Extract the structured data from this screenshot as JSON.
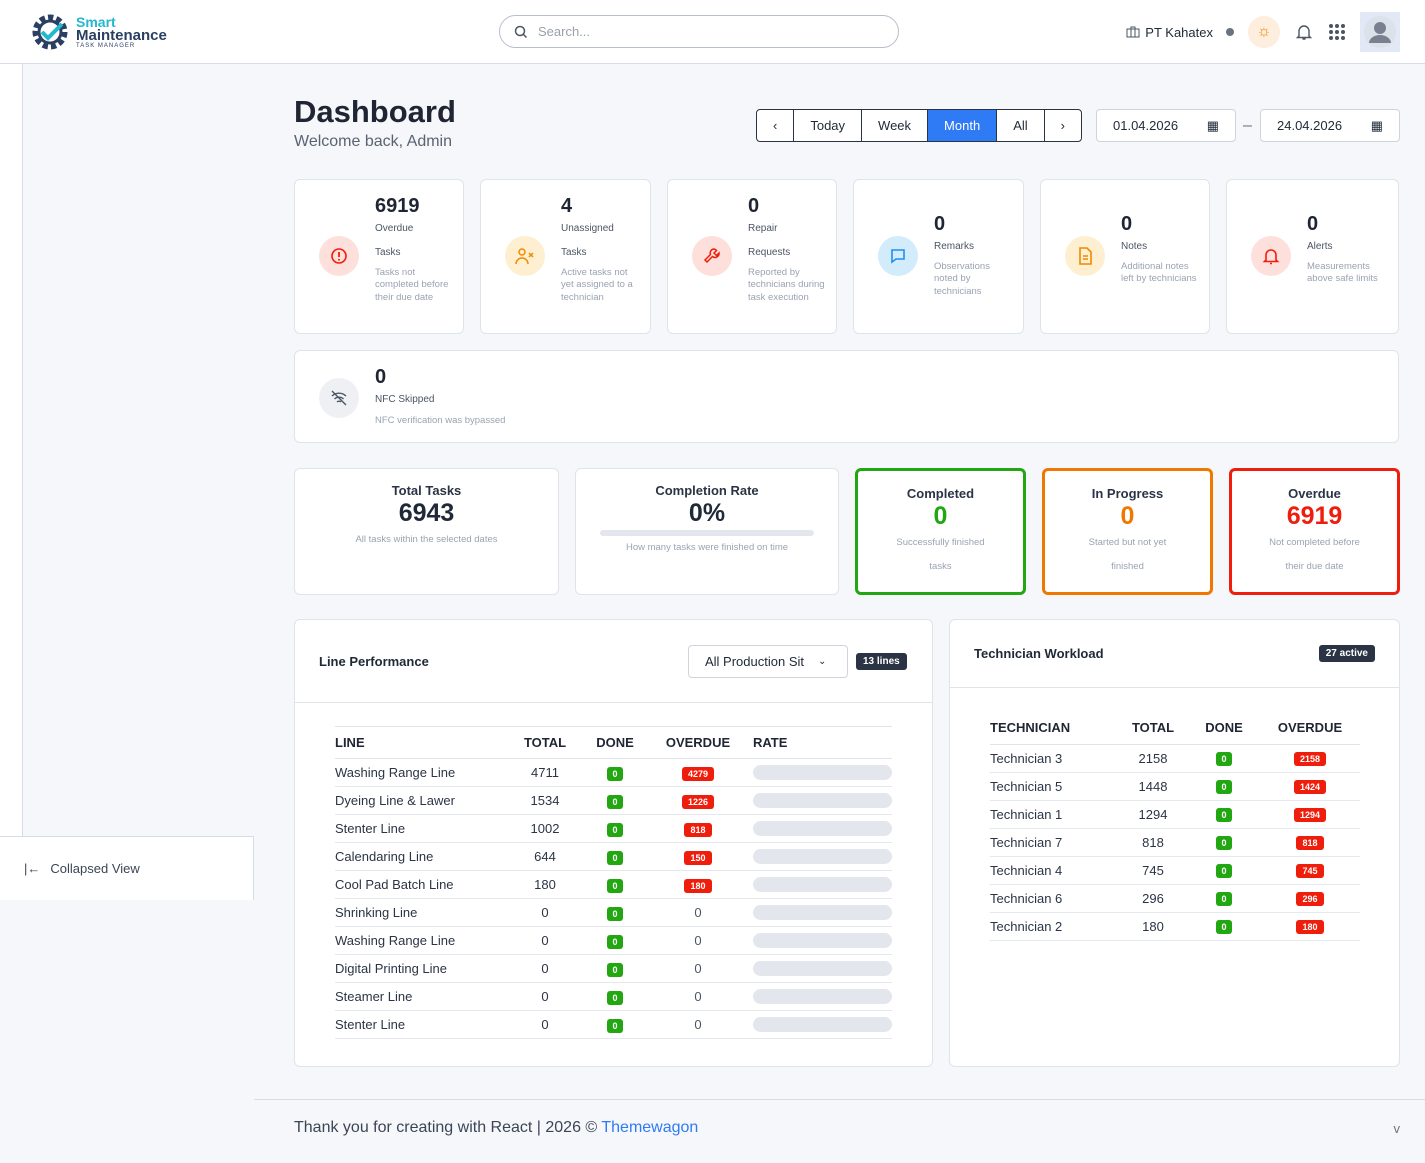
{
  "header": {
    "logo": {
      "line1": "Smart",
      "line2": "Maintenance",
      "line3": "TASK MANAGER"
    },
    "search_placeholder": "Search...",
    "company": "PT Kahatex"
  },
  "sidebar": {
    "collapse_label": "Collapsed View"
  },
  "page": {
    "title": "Dashboard",
    "subtitle": "Welcome back, Admin"
  },
  "range": {
    "prev": "‹",
    "today": "Today",
    "week": "Week",
    "month": "Month",
    "all": "All",
    "next": "›",
    "active": "Month",
    "from": "01.04.2026",
    "sep": "–",
    "to": "24.04.2026"
  },
  "kpis": [
    {
      "value": "6919",
      "label1": "Overdue",
      "label2": "Tasks",
      "desc": "Tasks not completed before their due date",
      "icon": "alert-circle",
      "color": "#ef1d0b",
      "bg": "#fde0dc"
    },
    {
      "value": "4",
      "label1": "Unassigned",
      "label2": "Tasks",
      "desc": "Active tasks not yet assigned to a technician",
      "icon": "user-x",
      "color": "#f08a00",
      "bg": "#fdefcf"
    },
    {
      "value": "0",
      "label1": "Repair",
      "label2": "Requests",
      "desc": "Reported by technicians during task execution",
      "icon": "wrench",
      "color": "#ef1d0b",
      "bg": "#fde0dc"
    },
    {
      "value": "0",
      "label1": "Remarks",
      "desc": "Observations noted by technicians",
      "icon": "message",
      "color": "#1e8ff0",
      "bg": "#d2ecfc"
    },
    {
      "value": "0",
      "label1": "Notes",
      "desc": "Additional notes left by technicians",
      "icon": "file",
      "color": "#f08a00",
      "bg": "#fdefcf"
    },
    {
      "value": "0",
      "label1": "Alerts",
      "desc": "Measurements above safe limits",
      "icon": "bell",
      "color": "#ef1d0b",
      "bg": "#fde0dc"
    }
  ],
  "nfc": {
    "value": "0",
    "label": "NFC Skipped",
    "desc": "NFC verification was bypassed"
  },
  "summary": {
    "total": {
      "title": "Total Tasks",
      "value": "6943",
      "desc": "All tasks within the selected dates"
    },
    "rate": {
      "title": "Completion Rate",
      "value": "0%",
      "progress": 0,
      "desc": "How many tasks were finished on time"
    },
    "completed": {
      "title": "Completed",
      "value": "0",
      "desc1": "Successfully finished",
      "desc2": "tasks",
      "color": "#22a612"
    },
    "progress": {
      "title": "In Progress",
      "value": "0",
      "desc1": "Started but not yet",
      "desc2": "finished",
      "color": "#f07800"
    },
    "overdue": {
      "title": "Overdue",
      "value": "6919",
      "desc1": "Not completed before",
      "desc2": "their due date",
      "color": "#ef1d0b"
    }
  },
  "line_perf": {
    "title": "Line Performance",
    "filter": "All Production Sit",
    "count": "13 lines",
    "columns": [
      "LINE",
      "TOTAL",
      "DONE",
      "OVERDUE",
      "RATE"
    ],
    "rows": [
      {
        "line": "Washing Range Line",
        "total": "4711",
        "done": "0",
        "overdue": "4279",
        "rate": 0
      },
      {
        "line": "Dyeing Line & Lawer",
        "total": "1534",
        "done": "0",
        "overdue": "1226",
        "rate": 0
      },
      {
        "line": "Stenter Line",
        "total": "1002",
        "done": "0",
        "overdue": "818",
        "rate": 0
      },
      {
        "line": "Calendaring Line",
        "total": "644",
        "done": "0",
        "overdue": "150",
        "rate": 0
      },
      {
        "line": "Cool Pad Batch Line",
        "total": "180",
        "done": "0",
        "overdue": "180",
        "rate": 0
      },
      {
        "line": "Shrinking Line",
        "total": "0",
        "done": "0",
        "overdue": "0",
        "rate": 0
      },
      {
        "line": "Washing Range Line",
        "total": "0",
        "done": "0",
        "overdue": "0",
        "rate": 0
      },
      {
        "line": "Digital Printing Line",
        "total": "0",
        "done": "0",
        "overdue": "0",
        "rate": 0
      },
      {
        "line": "Steamer Line",
        "total": "0",
        "done": "0",
        "overdue": "0",
        "rate": 0
      },
      {
        "line": "Stenter Line",
        "total": "0",
        "done": "0",
        "overdue": "0",
        "rate": 0
      }
    ]
  },
  "workload": {
    "title": "Technician Workload",
    "count": "27 active",
    "columns": [
      "TECHNICIAN",
      "TOTAL",
      "DONE",
      "OVERDUE"
    ],
    "rows": [
      {
        "name": "Technician 3",
        "total": "2158",
        "done": "0",
        "overdue": "2158"
      },
      {
        "name": "Technician 5",
        "total": "1448",
        "done": "0",
        "overdue": "1424"
      },
      {
        "name": "Technician 1",
        "total": "1294",
        "done": "0",
        "overdue": "1294"
      },
      {
        "name": "Technician 7",
        "total": "818",
        "done": "0",
        "overdue": "818"
      },
      {
        "name": "Technician 4",
        "total": "745",
        "done": "0",
        "overdue": "745"
      },
      {
        "name": "Technician 6",
        "total": "296",
        "done": "0",
        "overdue": "296"
      },
      {
        "name": "Technician 2",
        "total": "180",
        "done": "0",
        "overdue": "180"
      }
    ]
  },
  "footer": {
    "text": "Thank you for creating with React | 2026 © ",
    "link": "Themewagon",
    "version": "v"
  }
}
